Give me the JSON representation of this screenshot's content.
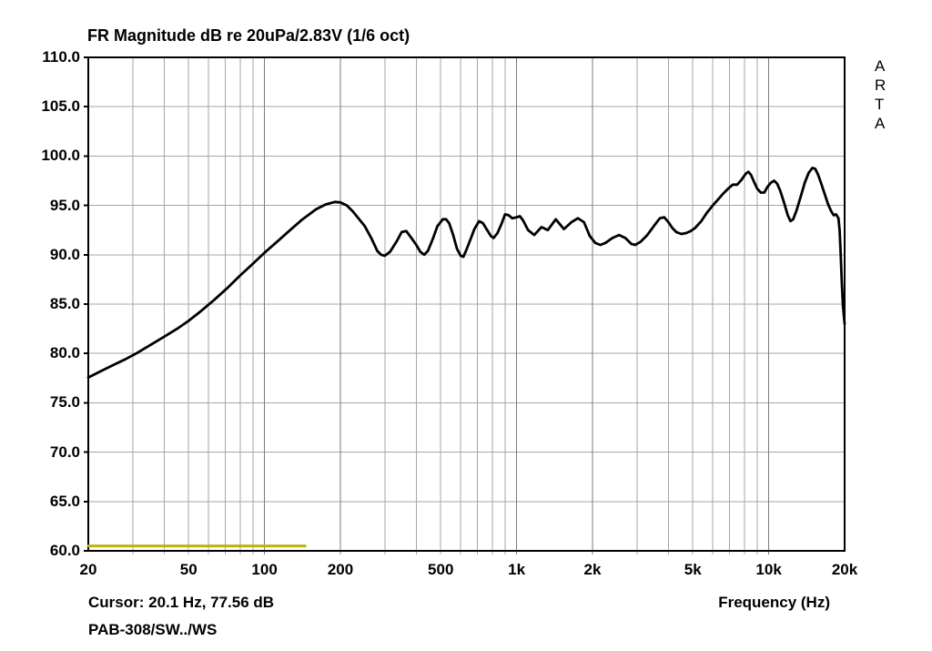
{
  "window": {
    "background": "#ffffff"
  },
  "chart_data": {
    "type": "line",
    "title": "FR Magnitude dB re 20uPa/2.83V (1/6 oct)",
    "x_axis_title": "Frequency (Hz)",
    "x_scale": "log",
    "x_unit": "Hz",
    "y_unit": "dB",
    "xlim": [
      20,
      20000
    ],
    "ylim": [
      60,
      110
    ],
    "grid": true,
    "y_ticks": [
      110,
      105,
      100,
      95,
      90,
      85,
      80,
      75,
      70,
      65,
      60
    ],
    "y_tick_labels": [
      "110.0",
      "105.0",
      "100.0",
      "95.0",
      "90.0",
      "85.0",
      "80.0",
      "75.0",
      "70.0",
      "65.0",
      "60.0"
    ],
    "x_ticks": [
      {
        "f": 20,
        "label": "20"
      },
      {
        "f": 50,
        "label": "50"
      },
      {
        "f": 100,
        "label": "100"
      },
      {
        "f": 200,
        "label": "200"
      },
      {
        "f": 500,
        "label": "500"
      },
      {
        "f": 1000,
        "label": "1k"
      },
      {
        "f": 2000,
        "label": "2k"
      },
      {
        "f": 5000,
        "label": "5k"
      },
      {
        "f": 10000,
        "label": "10k"
      },
      {
        "f": 20000,
        "label": "20k"
      }
    ],
    "x_gridlines": [
      30,
      40,
      50,
      60,
      70,
      80,
      90,
      100,
      200,
      300,
      400,
      500,
      600,
      700,
      800,
      900,
      1000,
      2000,
      3000,
      4000,
      5000,
      6000,
      7000,
      8000,
      9000,
      10000
    ],
    "x_major_gridlines": [
      100,
      200,
      1000,
      2000,
      10000
    ],
    "colors": {
      "grid": "#a6a6a6",
      "major_grid": "#7b7b7b",
      "frame": "#000000",
      "text": "#000000",
      "background": "#ffffff",
      "curve": "#000000",
      "overlay": "#b9b40e"
    },
    "annotations": {
      "watermark": "ARTA",
      "cursor_readout": "Cursor: 20.1 Hz, 77.56 dB",
      "overlay_label": "PAB-308/SW../WS"
    },
    "series": [
      {
        "name": "FR magnitude (1/6 oct)",
        "color": "#000000",
        "stroke_width": 2.8,
        "points": [
          [
            20,
            77.56
          ],
          [
            22.4,
            78.2
          ],
          [
            25,
            78.8
          ],
          [
            28,
            79.4
          ],
          [
            31.5,
            80.1
          ],
          [
            35.5,
            80.9
          ],
          [
            40,
            81.7
          ],
          [
            45,
            82.5
          ],
          [
            50,
            83.3
          ],
          [
            56,
            84.3
          ],
          [
            63,
            85.4
          ],
          [
            71,
            86.6
          ],
          [
            80,
            87.9
          ],
          [
            90,
            89.1
          ],
          [
            100,
            90.2
          ],
          [
            112,
            91.3
          ],
          [
            125,
            92.4
          ],
          [
            140,
            93.5
          ],
          [
            160,
            94.6
          ],
          [
            175,
            95.1
          ],
          [
            190,
            95.35
          ],
          [
            200,
            95.3
          ],
          [
            212,
            95.0
          ],
          [
            224,
            94.4
          ],
          [
            250,
            92.9
          ],
          [
            265,
            91.7
          ],
          [
            280,
            90.4
          ],
          [
            290,
            90.0
          ],
          [
            300,
            89.9
          ],
          [
            315,
            90.3
          ],
          [
            335,
            91.4
          ],
          [
            350,
            92.3
          ],
          [
            365,
            92.4
          ],
          [
            385,
            91.6
          ],
          [
            400,
            91.0
          ],
          [
            415,
            90.3
          ],
          [
            430,
            90.0
          ],
          [
            445,
            90.4
          ],
          [
            465,
            91.6
          ],
          [
            485,
            92.9
          ],
          [
            510,
            93.6
          ],
          [
            525,
            93.6
          ],
          [
            540,
            93.2
          ],
          [
            560,
            92.0
          ],
          [
            580,
            90.6
          ],
          [
            600,
            89.9
          ],
          [
            615,
            89.8
          ],
          [
            630,
            90.4
          ],
          [
            655,
            91.5
          ],
          [
            680,
            92.6
          ],
          [
            710,
            93.4
          ],
          [
            735,
            93.2
          ],
          [
            760,
            92.6
          ],
          [
            790,
            91.9
          ],
          [
            810,
            91.7
          ],
          [
            840,
            92.2
          ],
          [
            870,
            93.1
          ],
          [
            900,
            94.1
          ],
          [
            930,
            94.0
          ],
          [
            960,
            93.7
          ],
          [
            1000,
            93.8
          ],
          [
            1030,
            93.9
          ],
          [
            1060,
            93.5
          ],
          [
            1110,
            92.5
          ],
          [
            1175,
            92.0
          ],
          [
            1255,
            92.8
          ],
          [
            1330,
            92.5
          ],
          [
            1430,
            93.6
          ],
          [
            1540,
            92.6
          ],
          [
            1650,
            93.3
          ],
          [
            1750,
            93.7
          ],
          [
            1850,
            93.3
          ],
          [
            1950,
            91.9
          ],
          [
            2050,
            91.2
          ],
          [
            2150,
            91.0
          ],
          [
            2250,
            91.2
          ],
          [
            2400,
            91.7
          ],
          [
            2550,
            92.0
          ],
          [
            2700,
            91.7
          ],
          [
            2850,
            91.1
          ],
          [
            2950,
            91.0
          ],
          [
            3100,
            91.3
          ],
          [
            3300,
            92.0
          ],
          [
            3500,
            92.9
          ],
          [
            3700,
            93.7
          ],
          [
            3850,
            93.8
          ],
          [
            4000,
            93.3
          ],
          [
            4150,
            92.7
          ],
          [
            4300,
            92.3
          ],
          [
            4500,
            92.1
          ],
          [
            4700,
            92.2
          ],
          [
            4900,
            92.4
          ],
          [
            5100,
            92.7
          ],
          [
            5400,
            93.4
          ],
          [
            5700,
            94.3
          ],
          [
            6000,
            95.0
          ],
          [
            6300,
            95.6
          ],
          [
            6600,
            96.2
          ],
          [
            6900,
            96.7
          ],
          [
            7200,
            97.1
          ],
          [
            7500,
            97.1
          ],
          [
            7800,
            97.6
          ],
          [
            8100,
            98.2
          ],
          [
            8300,
            98.4
          ],
          [
            8500,
            98.1
          ],
          [
            8700,
            97.5
          ],
          [
            9000,
            96.7
          ],
          [
            9300,
            96.3
          ],
          [
            9600,
            96.3
          ],
          [
            9900,
            96.9
          ],
          [
            10200,
            97.3
          ],
          [
            10500,
            97.5
          ],
          [
            10800,
            97.2
          ],
          [
            11100,
            96.5
          ],
          [
            11500,
            95.3
          ],
          [
            11900,
            94.0
          ],
          [
            12200,
            93.4
          ],
          [
            12500,
            93.6
          ],
          [
            12900,
            94.5
          ],
          [
            13400,
            95.9
          ],
          [
            13900,
            97.3
          ],
          [
            14400,
            98.3
          ],
          [
            14900,
            98.8
          ],
          [
            15300,
            98.7
          ],
          [
            15700,
            98.1
          ],
          [
            16200,
            97.1
          ],
          [
            16700,
            96.1
          ],
          [
            17200,
            95.1
          ],
          [
            17700,
            94.4
          ],
          [
            18100,
            94.0
          ],
          [
            18500,
            94.1
          ],
          [
            18900,
            93.7
          ],
          [
            19100,
            92.5
          ],
          [
            19300,
            90.0
          ],
          [
            19500,
            87.0
          ],
          [
            19700,
            84.8
          ],
          [
            20000,
            83.0
          ]
        ]
      },
      {
        "name": "overlay marker",
        "color": "#b9b40e",
        "stroke_width": 3,
        "points": [
          [
            20,
            60.5
          ],
          [
            145,
            60.5
          ]
        ]
      }
    ]
  }
}
